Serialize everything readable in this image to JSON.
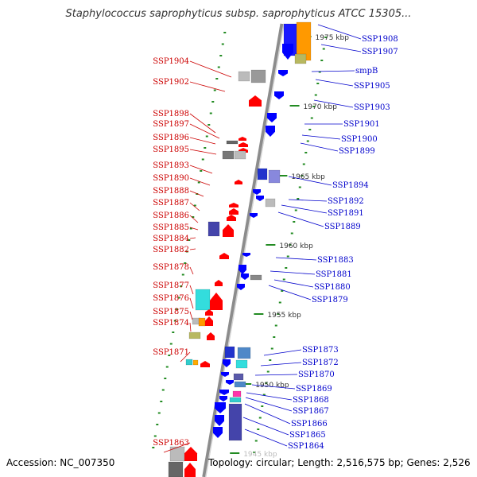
{
  "title": "Staphylococcus saprophyticus subsp. saprophyticus ATCC 15305...",
  "accession": "Accession: NC_007350",
  "topology": "Topology: circular; Length: 2,516,575 bp; Genes: 2,526",
  "colors": {
    "backbone": "#8c8c8c",
    "left_label": "#cc0000",
    "right_label": "#0000cc",
    "tick": "#228b22",
    "forward_gene": "#ff0000",
    "reverse_gene": "#0000ff"
  },
  "ruler_labels": [
    "1975 kbp",
    "1970 kbp",
    "1965 kbp",
    "1960 kbp",
    "1955 kbp",
    "1950 kbp",
    "1945 kbp"
  ],
  "left_genes": [
    "SSP1904",
    "SSP1902",
    "SSP1898",
    "SSP1897",
    "SSP1896",
    "SSP1895",
    "SSP1893",
    "SSP1890",
    "SSP1888",
    "SSP1887",
    "SSP1886",
    "SSP1885",
    "SSP1884",
    "SSP1882",
    "SSP1878",
    "SSP1877",
    "SSP1876",
    "SSP1875",
    "SSP1874",
    "SSP1871",
    "SSP1863"
  ],
  "right_genes": [
    "SSP1908",
    "SSP1907",
    "smpB",
    "SSP1905",
    "SSP1903",
    "SSP1901",
    "SSP1900",
    "SSP1899",
    "SSP1894",
    "SSP1892",
    "SSP1891",
    "SSP1889",
    "SSP1883",
    "SSP1881",
    "SSP1880",
    "SSP1879",
    "SSP1873",
    "SSP1872",
    "SSP1870",
    "SSP1869",
    "SSP1868",
    "SSP1867",
    "SSP1866",
    "SSP1865",
    "SSP1864"
  ]
}
